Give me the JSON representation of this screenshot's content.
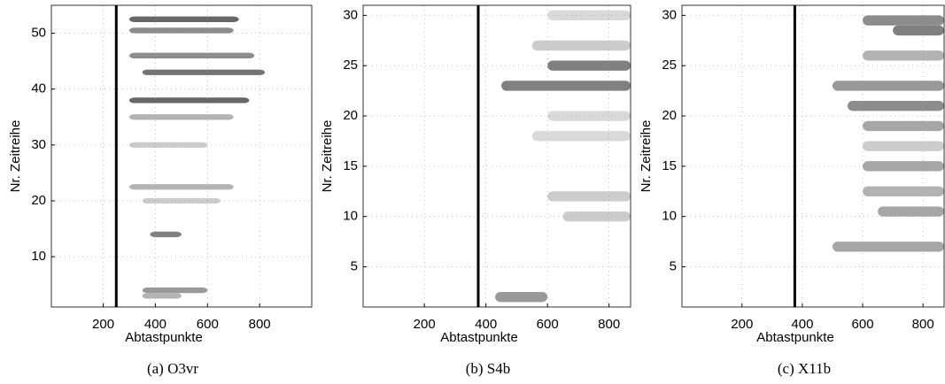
{
  "chart_data": [
    {
      "type": "heatmap",
      "caption": "(a) O3vr",
      "xlabel": "Abtastpunkte",
      "ylabel": "Nr. Zeitreihe",
      "xlim": [
        1,
        1000
      ],
      "ylim": [
        1,
        55
      ],
      "xticks": [
        200,
        400,
        600,
        800
      ],
      "yticks": [
        10,
        20,
        30,
        40,
        50
      ],
      "grid": true,
      "marker_x": 250,
      "rows": {
        "y": [
          52.5,
          50.5,
          46,
          43,
          38,
          35,
          30,
          22.5,
          20,
          14,
          4,
          3
        ],
        "x0": [
          300,
          300,
          300,
          350,
          300,
          300,
          300,
          300,
          350,
          380,
          350,
          350
        ],
        "x1": [
          720,
          700,
          780,
          820,
          760,
          700,
          600,
          700,
          650,
          500,
          600,
          500
        ],
        "values": [
          0.6,
          0.45,
          0.45,
          0.55,
          0.6,
          0.3,
          0.2,
          0.3,
          0.2,
          0.5,
          0.4,
          0.3
        ]
      }
    },
    {
      "type": "heatmap",
      "caption": "(b) S4b",
      "xlabel": "Abtastpunkte",
      "ylabel": "Nr. Zeitreihe",
      "xlim": [
        1,
        870
      ],
      "ylim": [
        1,
        31
      ],
      "xticks": [
        200,
        400,
        600,
        800
      ],
      "yticks": [
        5,
        10,
        15,
        20,
        25,
        30
      ],
      "grid": true,
      "marker_x": 375,
      "rows": {
        "y": [
          30,
          27,
          25,
          23,
          20,
          18,
          12,
          10,
          2
        ],
        "x0": [
          600,
          550,
          600,
          450,
          600,
          550,
          600,
          650,
          430
        ],
        "x1": [
          870,
          870,
          870,
          870,
          870,
          870,
          870,
          870,
          600
        ],
        "values": [
          0.15,
          0.2,
          0.5,
          0.5,
          0.15,
          0.15,
          0.2,
          0.2,
          0.4
        ]
      }
    },
    {
      "type": "heatmap",
      "caption": "(c) X11b",
      "xlabel": "Abtastpunkte",
      "ylabel": "Nr. Zeitreihe",
      "xlim": [
        1,
        870
      ],
      "ylim": [
        1,
        31
      ],
      "xticks": [
        200,
        400,
        600,
        800
      ],
      "yticks": [
        5,
        10,
        15,
        20,
        25,
        30
      ],
      "grid": true,
      "marker_x": 375,
      "rows": {
        "y": [
          29.5,
          28.5,
          26,
          23,
          21,
          19,
          17,
          15,
          12.5,
          10.5,
          7
        ],
        "x0": [
          600,
          700,
          600,
          500,
          550,
          600,
          600,
          600,
          600,
          650,
          500
        ],
        "x1": [
          870,
          870,
          870,
          870,
          870,
          870,
          870,
          870,
          870,
          870,
          870
        ],
        "values": [
          0.45,
          0.5,
          0.3,
          0.4,
          0.45,
          0.35,
          0.2,
          0.35,
          0.3,
          0.35,
          0.35
        ]
      }
    }
  ]
}
